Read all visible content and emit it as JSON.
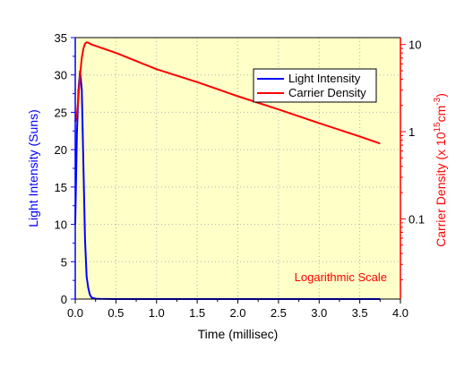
{
  "chart_data": {
    "type": "line",
    "xlabel": "Time (millisec)",
    "ylabel_left": "Light Intensity (Suns)",
    "ylabel_right_prefix": "Carrier Density (x 10",
    "ylabel_right_sup1": "15",
    "ylabel_right_mid": "cm",
    "ylabel_right_sup2": "-3",
    "ylabel_right_suffix": ")",
    "xlim": [
      0,
      4.0
    ],
    "ylim_left": [
      0,
      35
    ],
    "ylim_right_log": [
      0.012,
      12
    ],
    "right_scale": "log",
    "grid": true,
    "legend_position": "top-right",
    "annotation": "Logarithmic Scale",
    "x_ticks": [
      "0.0",
      "0.5",
      "1.0",
      "1.5",
      "2.0",
      "2.5",
      "3.0",
      "3.5",
      "4.0"
    ],
    "y_left_ticks": [
      "0",
      "5",
      "10",
      "15",
      "20",
      "25",
      "30",
      "35"
    ],
    "y_right_ticks": [
      "10",
      "1",
      "0.1"
    ],
    "colors": {
      "background": "#ffffc8",
      "light_series": "#0000ff",
      "carrier_series": "#ff0000",
      "left_axis": "#0000ff",
      "right_axis": "#ff0000"
    },
    "series": [
      {
        "name": "Light Intensity",
        "axis": "left",
        "x": [
          0.0,
          0.02,
          0.04,
          0.06,
          0.08,
          0.1,
          0.12,
          0.14,
          0.16,
          0.18,
          0.2,
          0.25,
          0.3,
          0.5,
          1.0,
          2.0,
          3.0,
          3.75
        ],
        "y": [
          10,
          22,
          28,
          30.5,
          28,
          18,
          8,
          3,
          1.5,
          0.6,
          0.2,
          0.05,
          0.02,
          0,
          0,
          0,
          0,
          0
        ]
      },
      {
        "name": "Carrier Density",
        "axis": "right",
        "x": [
          0.0,
          0.02,
          0.04,
          0.06,
          0.08,
          0.1,
          0.12,
          0.14,
          0.16,
          0.2,
          0.3,
          0.5,
          1.0,
          1.5,
          2.0,
          2.5,
          3.0,
          3.5,
          3.75
        ],
        "y": [
          1.3,
          1.6,
          2.5,
          4.5,
          7.0,
          9.0,
          10.2,
          10.6,
          10.5,
          10.0,
          9.3,
          8.0,
          5.2,
          3.7,
          2.55,
          1.8,
          1.25,
          0.88,
          0.73
        ]
      }
    ]
  }
}
